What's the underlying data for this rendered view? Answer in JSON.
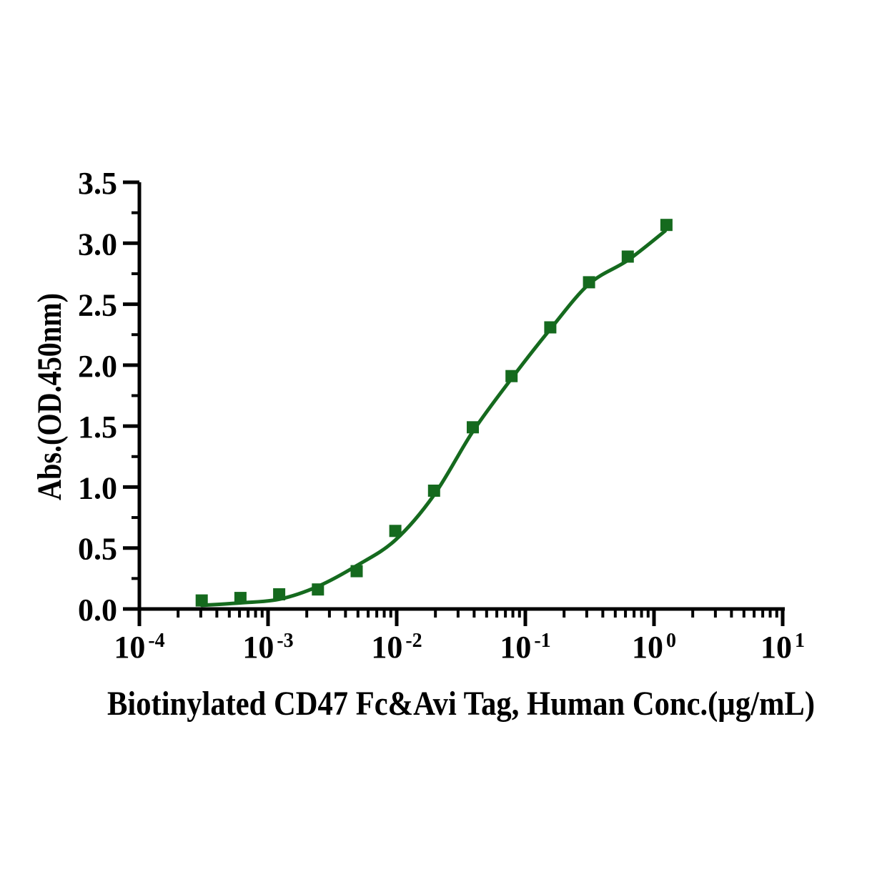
{
  "chart_data": {
    "type": "scatter",
    "title": "",
    "xlabel": "Biotinylated CD47 Fc&Avi Tag, Human Conc.(µg/mL)",
    "ylabel": "Abs.(OD.450nm)",
    "x_scale": "log10",
    "xlim_exponents": [
      -4,
      1
    ],
    "x_tick_exponents": [
      -4,
      -3,
      -2,
      -1,
      0,
      1
    ],
    "x_tick_base": "10",
    "x_minor_mantissas": [
      2,
      3,
      4,
      5,
      6,
      7,
      8,
      9
    ],
    "ylim": [
      0,
      3.5
    ],
    "y_major_ticks": [
      0,
      0.5,
      1,
      1.5,
      2,
      2.5,
      3,
      3.5
    ],
    "y_tick_labels": [
      "0.0",
      "0.5",
      "1.0",
      "1.5",
      "2.0",
      "2.5",
      "3.0",
      "3.5"
    ],
    "y_minor_ticks": [
      0.25,
      0.75,
      1.25,
      1.75,
      2.25,
      2.75,
      3.25
    ],
    "grid": false,
    "legend": "none",
    "colors": {
      "axis": "#000000",
      "series": "#156a1e",
      "background": "#ffffff"
    },
    "series": [
      {
        "name": "Biotinylated CD47 Fc&Avi Tag, Human",
        "marker": "square",
        "x": [
          0.00030517578125,
          0.0006103515625,
          0.001220703125,
          0.00244140625,
          0.0048828125,
          0.009765625,
          0.01953125,
          0.0390625,
          0.078125,
          0.15625,
          0.3125,
          0.625,
          1.25
        ],
        "y": [
          0.07,
          0.09,
          0.12,
          0.16,
          0.31,
          0.64,
          0.97,
          1.49,
          1.91,
          2.31,
          2.68,
          2.89,
          3.15
        ]
      }
    ],
    "fit_curve": {
      "description": "sigmoidal 4PL fit line",
      "x": [
        0.00030517578125,
        0.0006103515625,
        0.001220703125,
        0.00244140625,
        0.0048828125,
        0.009765625,
        0.01953125,
        0.0390625,
        0.078125,
        0.15625,
        0.3125,
        0.625,
        1.22
      ],
      "y": [
        0.03,
        0.05,
        0.08,
        0.185,
        0.355,
        0.565,
        0.935,
        1.455,
        1.89,
        2.295,
        2.665,
        2.86,
        3.1
      ]
    }
  }
}
